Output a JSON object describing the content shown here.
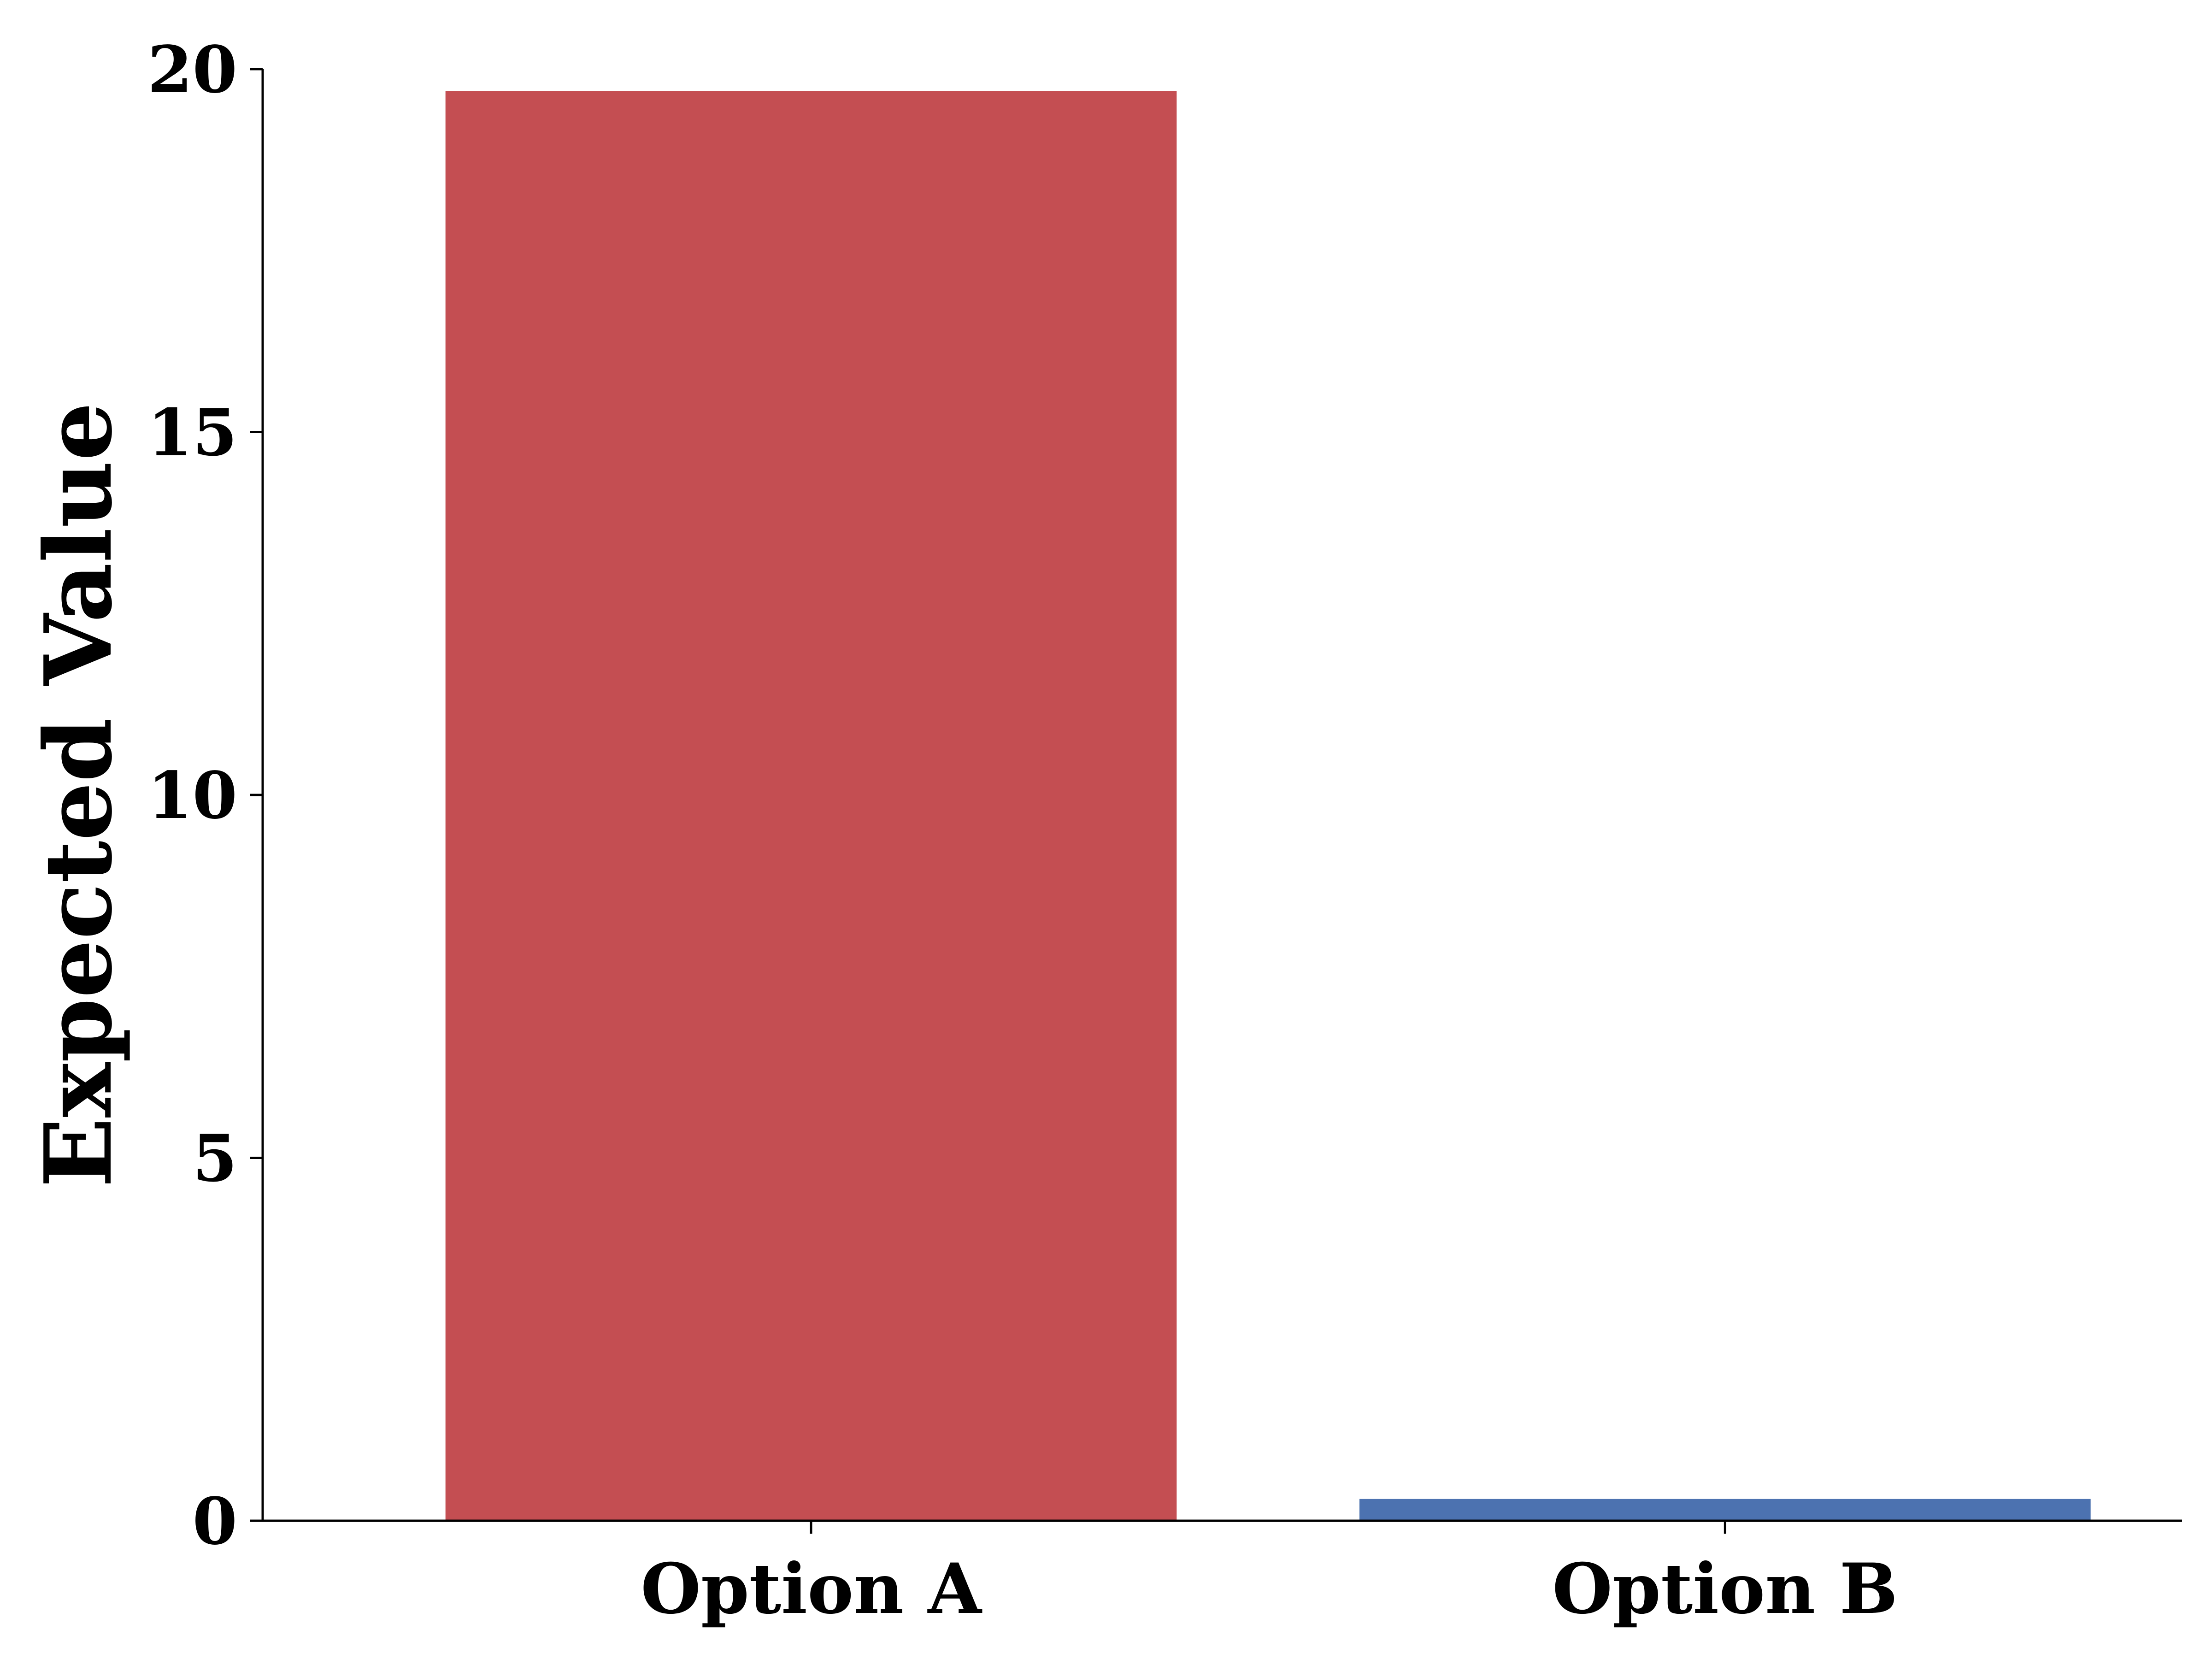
{
  "chart_data": {
    "type": "bar",
    "title": "",
    "xlabel": "",
    "ylabel": "Expected Value",
    "categories": [
      "Option A",
      "Option B"
    ],
    "values": [
      19.7,
      0.3
    ],
    "colors": [
      "#C44E52",
      "#4C72B0"
    ],
    "ylim": [
      0,
      20
    ],
    "yticks": [
      "0",
      "5",
      "10",
      "15",
      "20"
    ],
    "grid": false,
    "legend": "none"
  }
}
